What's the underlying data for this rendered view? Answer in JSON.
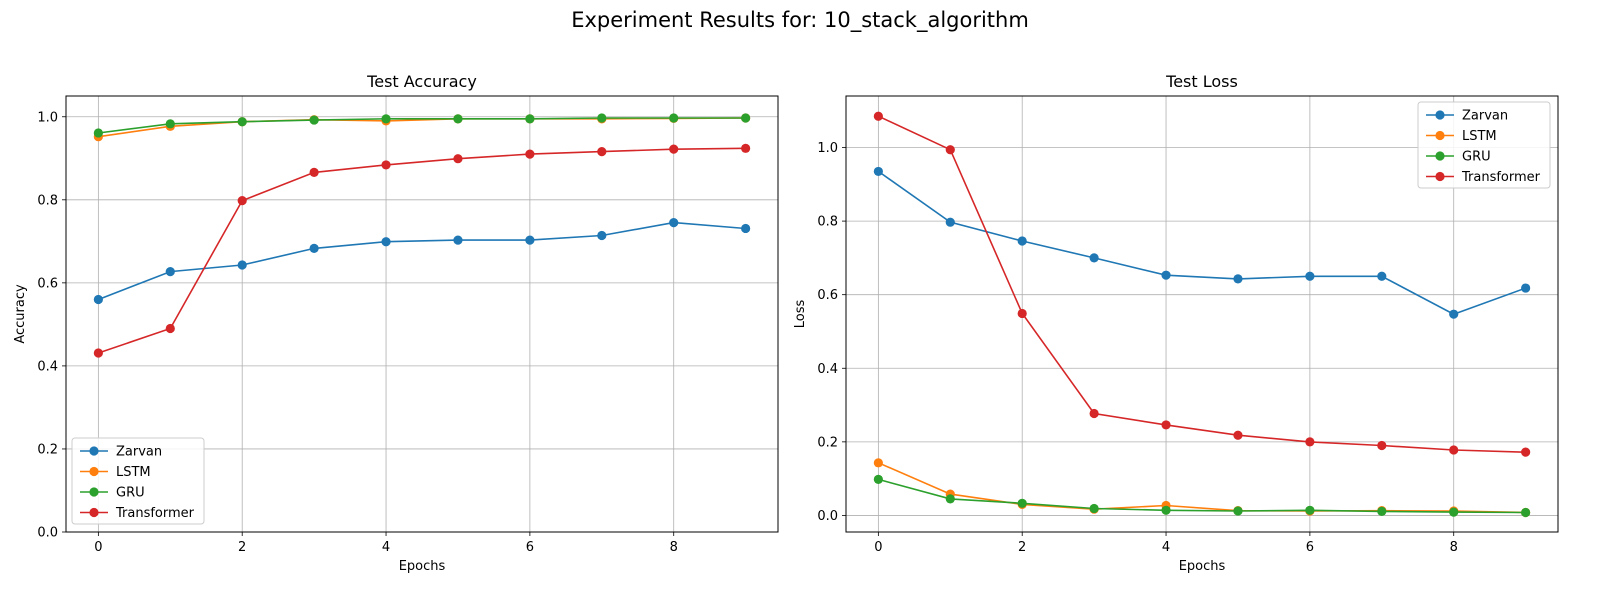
{
  "figure_title": "Experiment Results for: 10_stack_algorithm",
  "colors": {
    "Zarvan": "#1f77b4",
    "LSTM": "#ff7f0e",
    "GRU": "#2ca02c",
    "Transformer": "#d62728"
  },
  "chart_data": [
    {
      "type": "line",
      "title": "Test Accuracy",
      "xlabel": "Epochs",
      "ylabel": "Accuracy",
      "x": [
        0,
        1,
        2,
        3,
        4,
        5,
        6,
        7,
        8,
        9
      ],
      "xlim": [
        -0.45,
        9.45
      ],
      "ylim": [
        0,
        1.05
      ],
      "xticks": [
        0,
        2,
        4,
        6,
        8
      ],
      "yticks": [
        0.0,
        0.2,
        0.4,
        0.6,
        0.8,
        1.0
      ],
      "grid": true,
      "legend_position": "lower-left",
      "series": [
        {
          "name": "Zarvan",
          "values": [
            0.56,
            0.627,
            0.643,
            0.683,
            0.699,
            0.703,
            0.703,
            0.714,
            0.745,
            0.731
          ]
        },
        {
          "name": "LSTM",
          "values": [
            0.952,
            0.977,
            0.988,
            0.993,
            0.99,
            0.995,
            0.995,
            0.995,
            0.996,
            0.997
          ]
        },
        {
          "name": "GRU",
          "values": [
            0.961,
            0.983,
            0.988,
            0.992,
            0.995,
            0.995,
            0.995,
            0.997,
            0.997,
            0.997
          ]
        },
        {
          "name": "Transformer",
          "values": [
            0.431,
            0.49,
            0.798,
            0.866,
            0.884,
            0.899,
            0.91,
            0.916,
            0.922,
            0.924
          ]
        }
      ]
    },
    {
      "type": "line",
      "title": "Test Loss",
      "xlabel": "Epochs",
      "ylabel": "Loss",
      "x": [
        0,
        1,
        2,
        3,
        4,
        5,
        6,
        7,
        8,
        9
      ],
      "xlim": [
        -0.45,
        9.45
      ],
      "ylim": [
        -0.045,
        1.14
      ],
      "xticks": [
        0,
        2,
        4,
        6,
        8
      ],
      "yticks": [
        0.0,
        0.2,
        0.4,
        0.6,
        0.8,
        1.0
      ],
      "grid": true,
      "legend_position": "upper-right",
      "series": [
        {
          "name": "Zarvan",
          "values": [
            0.935,
            0.797,
            0.746,
            0.7,
            0.653,
            0.643,
            0.65,
            0.65,
            0.547,
            0.618
          ]
        },
        {
          "name": "LSTM",
          "values": [
            0.143,
            0.058,
            0.03,
            0.017,
            0.027,
            0.013,
            0.012,
            0.013,
            0.012,
            0.008
          ]
        },
        {
          "name": "GRU",
          "values": [
            0.098,
            0.045,
            0.033,
            0.019,
            0.014,
            0.012,
            0.014,
            0.011,
            0.009,
            0.008
          ]
        },
        {
          "name": "Transformer",
          "values": [
            1.085,
            0.994,
            0.549,
            0.277,
            0.246,
            0.218,
            0.2,
            0.19,
            0.178,
            0.172
          ]
        }
      ]
    }
  ]
}
